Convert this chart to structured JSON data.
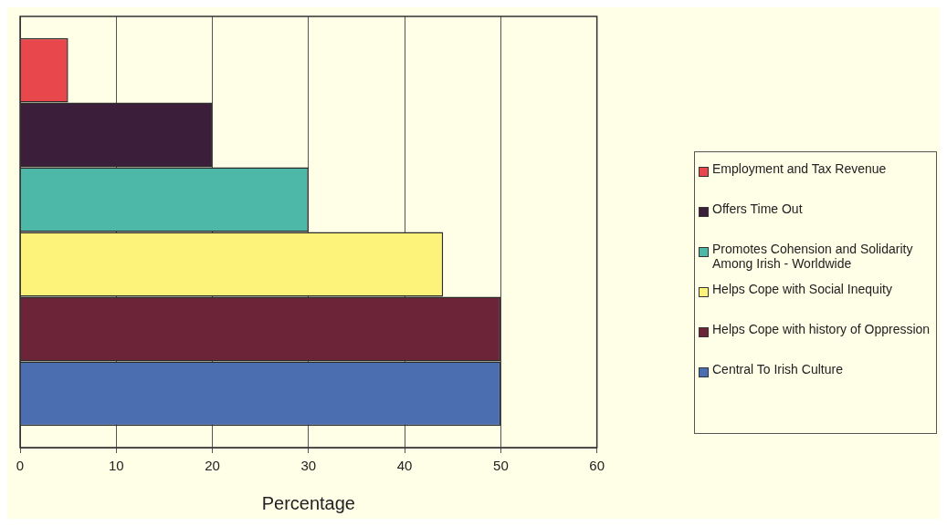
{
  "chart_data": {
    "type": "bar",
    "orientation": "horizontal",
    "xlabel": "Percentage",
    "categories": [
      null
    ],
    "series": [
      {
        "name": "Employment and Tax Revenue",
        "color": "#e8474c",
        "values": [
          5
        ]
      },
      {
        "name": "Offers Time Out",
        "color": "#3b1f3a",
        "values": [
          20
        ]
      },
      {
        "name": "Promotes Cohension and Solidarity Among Irish - Worldwide",
        "color": "#4db8a8",
        "values": [
          30
        ]
      },
      {
        "name": "Helps Cope with Social Inequity",
        "color": "#fdf37a",
        "values": [
          44
        ]
      },
      {
        "name": "Helps Cope with history of Oppression",
        "color": "#6b2438",
        "values": [
          50
        ]
      },
      {
        "name": "Central To Irish Culture",
        "color": "#4a6eb0",
        "values": [
          50
        ]
      }
    ],
    "xlim": [
      0,
      60
    ],
    "xticks": [
      0,
      10,
      20,
      30,
      40,
      50,
      60
    ],
    "grid": "x",
    "legend": "right"
  }
}
